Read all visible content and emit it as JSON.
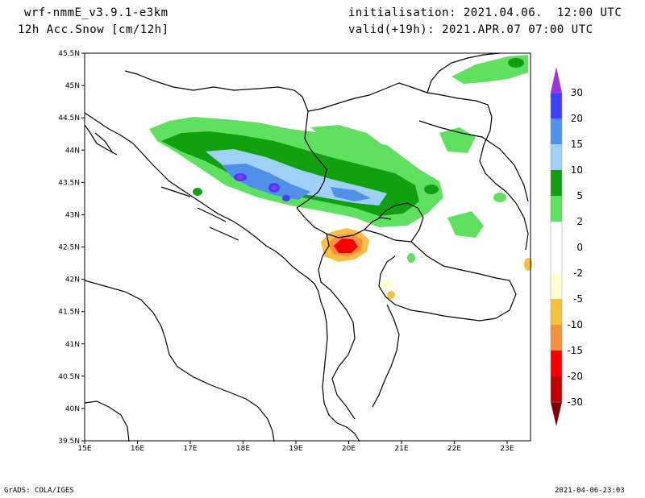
{
  "header": {
    "model": "wrf-nmmE_v3.9.1-e3km",
    "field": "12h Acc.Snow [cm/12h]",
    "init": "initialisation: 2021.04.06.  12:00 UTC",
    "valid": "valid(+19h): 2021.APR.07 07:00 UTC"
  },
  "axes": {
    "lat_labels": [
      "45.5N",
      "45N",
      "44.5N",
      "44N",
      "43.5N",
      "43N",
      "42.5N",
      "42N",
      "41.5N",
      "41N",
      "40.5N",
      "40N",
      "39.5N"
    ],
    "lon_labels": [
      "15E",
      "16E",
      "17E",
      "18E",
      "19E",
      "20E",
      "21E",
      "22E",
      "23E"
    ]
  },
  "colorbar": {
    "labels": [
      "30",
      "20",
      "15",
      "10",
      "5",
      "2",
      "0",
      "-2",
      "-5",
      "-10",
      "-15",
      "-20",
      "-30"
    ],
    "colors": [
      "#4040ff",
      "#5090e8",
      "#a0d0f8",
      "#10a010",
      "#60e060",
      "#ffffff",
      "#ffffff",
      "#ffffd0",
      "#f8c040",
      "#f89040",
      "#f80000",
      "#c00000"
    ],
    "top_arrow_color": "#a030e0",
    "bottom_arrow_color": "#800000"
  },
  "footer": {
    "left": "GrADS: COLA/IGES",
    "right": "2021-04-06-23:03"
  }
}
